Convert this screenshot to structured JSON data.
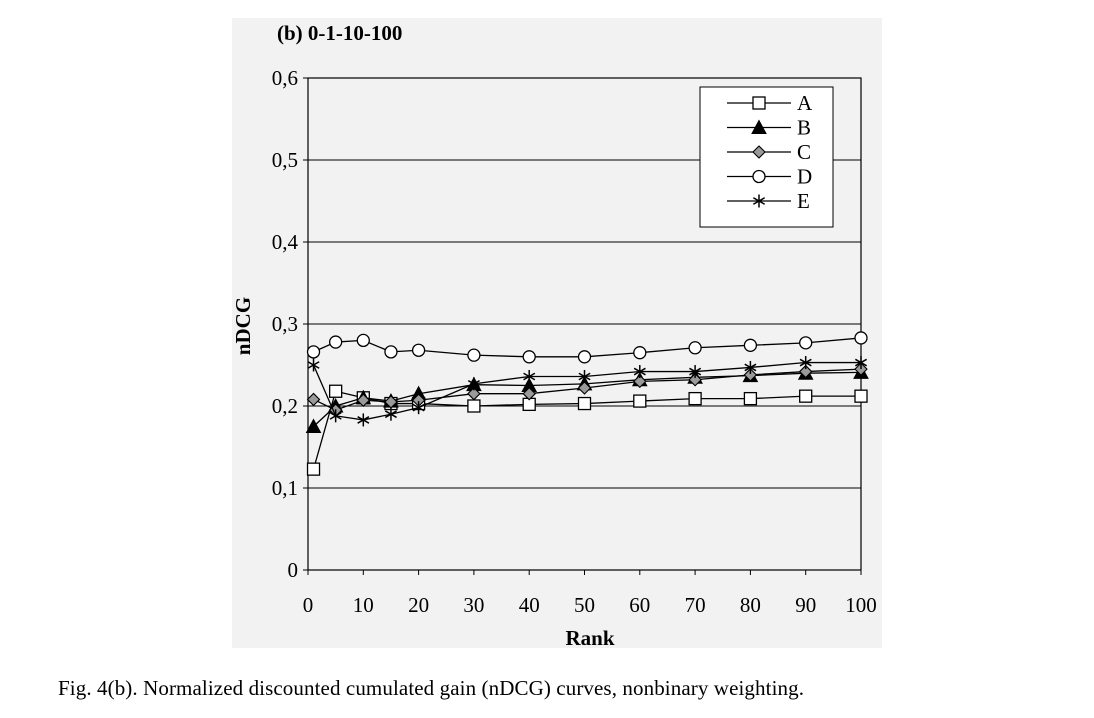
{
  "figure": {
    "caption": "Fig. 4(b).   Normalized discounted cumulated gain (nDCG) curves, nonbinary weighting."
  },
  "chart_data": {
    "type": "line",
    "title": "(b) 0-1-10-100",
    "xlabel": "Rank",
    "ylabel": "nDCG",
    "xlim": [
      0,
      100
    ],
    "ylim": [
      0,
      0.6
    ],
    "x_ticks": [
      "0",
      "10",
      "20",
      "30",
      "40",
      "50",
      "60",
      "70",
      "80",
      "90",
      "100"
    ],
    "y_ticks": [
      "0",
      "0,1",
      "0,2",
      "0,3",
      "0,4",
      "0,5",
      "0,6"
    ],
    "grid": "horizontal",
    "legend_position": "top-right",
    "x": [
      1,
      5,
      10,
      15,
      20,
      30,
      40,
      50,
      60,
      70,
      80,
      90,
      100
    ],
    "series": [
      {
        "name": "A",
        "marker": "open-square",
        "values": [
          0.123,
          0.218,
          0.21,
          0.203,
          0.203,
          0.2,
          0.202,
          0.203,
          0.206,
          0.209,
          0.209,
          0.212,
          0.212
        ]
      },
      {
        "name": "B",
        "marker": "filled-triangle",
        "values": [
          0.175,
          0.2,
          0.21,
          0.206,
          0.215,
          0.226,
          0.225,
          0.227,
          0.232,
          0.235,
          0.237,
          0.24,
          0.241
        ]
      },
      {
        "name": "C",
        "marker": "gray-diamond",
        "values": [
          0.208,
          0.195,
          0.207,
          0.205,
          0.207,
          0.215,
          0.215,
          0.222,
          0.23,
          0.232,
          0.238,
          0.242,
          0.245
        ]
      },
      {
        "name": "D",
        "marker": "open-circle",
        "values": [
          0.266,
          0.278,
          0.28,
          0.266,
          0.268,
          0.262,
          0.26,
          0.26,
          0.265,
          0.271,
          0.274,
          0.277,
          0.283
        ]
      },
      {
        "name": "E",
        "marker": "asterisk",
        "values": [
          0.25,
          0.188,
          0.183,
          0.19,
          0.198,
          0.227,
          0.236,
          0.236,
          0.242,
          0.242,
          0.247,
          0.253,
          0.253
        ]
      }
    ]
  }
}
